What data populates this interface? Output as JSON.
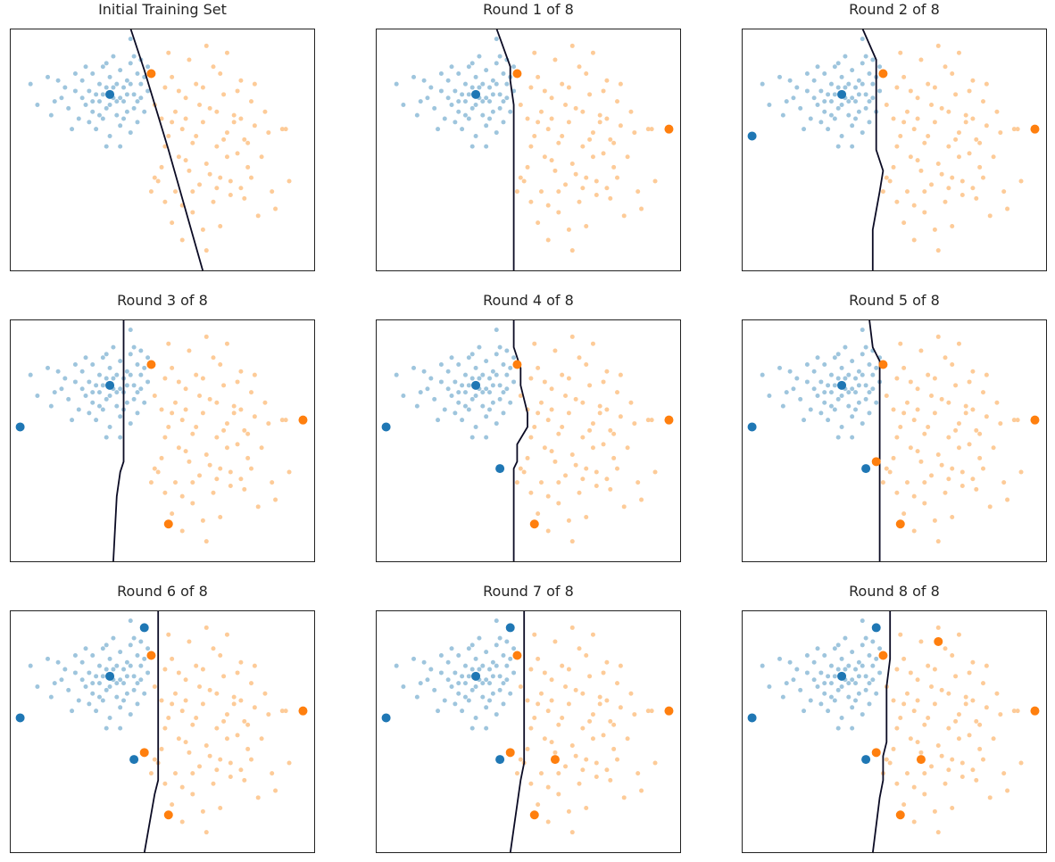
{
  "figure": {
    "colors": {
      "class_a_unlabeled": "#9ec5dd",
      "class_b_unlabeled": "#fdcb98",
      "class_a_labeled": "#1f77b4",
      "class_b_labeled": "#ff7f0e",
      "boundary": "#0b0b24",
      "frame": "#222222"
    }
  },
  "chart_data": [
    {
      "type": "scatter",
      "title": "Initial Training Set",
      "xticks": [],
      "yticks": [],
      "grid": false,
      "labeled_points": [
        {
          "class": "a",
          "x": -1.2,
          "y": 1.6
        },
        {
          "class": "b",
          "x": 0.0,
          "y": 2.2
        }
      ],
      "boundary": [
        [
          -0.6,
          3.5
        ],
        [
          -0.2,
          2.3
        ],
        [
          0.5,
          0.0
        ],
        [
          1.5,
          -3.5
        ]
      ]
    },
    {
      "type": "scatter",
      "title": "Round 1 of 8",
      "xticks": [],
      "yticks": [],
      "grid": false,
      "labeled_points": [
        {
          "class": "a",
          "x": -1.2,
          "y": 1.6
        },
        {
          "class": "b",
          "x": 0.0,
          "y": 2.2
        },
        {
          "class": "b",
          "x": 4.4,
          "y": 0.6
        }
      ],
      "boundary": [
        [
          -0.6,
          3.5
        ],
        [
          -0.2,
          2.4
        ],
        [
          -0.2,
          2.0
        ],
        [
          -0.1,
          1.3
        ],
        [
          -0.1,
          -3.5
        ]
      ]
    },
    {
      "type": "scatter",
      "title": "Round 2 of 8",
      "xticks": [],
      "yticks": [],
      "grid": false,
      "labeled_points": [
        {
          "class": "a",
          "x": -1.2,
          "y": 1.6
        },
        {
          "class": "b",
          "x": 0.0,
          "y": 2.2
        },
        {
          "class": "b",
          "x": 4.4,
          "y": 0.6
        },
        {
          "class": "a",
          "x": -3.8,
          "y": 0.4
        }
      ],
      "boundary": [
        [
          -0.6,
          3.5
        ],
        [
          -0.2,
          2.6
        ],
        [
          -0.2,
          0.0
        ],
        [
          0.0,
          -0.6
        ],
        [
          -0.1,
          -1.2
        ],
        [
          -0.3,
          -2.3
        ],
        [
          -0.3,
          -3.5
        ]
      ]
    },
    {
      "type": "scatter",
      "title": "Round 3 of 8",
      "xticks": [],
      "yticks": [],
      "grid": false,
      "labeled_points": [
        {
          "class": "a",
          "x": -1.2,
          "y": 1.6
        },
        {
          "class": "b",
          "x": 0.0,
          "y": 2.2
        },
        {
          "class": "b",
          "x": 4.4,
          "y": 0.6
        },
        {
          "class": "a",
          "x": -3.8,
          "y": 0.4
        },
        {
          "class": "b",
          "x": 0.5,
          "y": -2.4
        }
      ],
      "boundary": [
        [
          -0.8,
          3.5
        ],
        [
          -0.8,
          -0.6
        ],
        [
          -0.9,
          -0.9
        ],
        [
          -1.0,
          -1.6
        ],
        [
          -1.1,
          -3.5
        ]
      ]
    },
    {
      "type": "scatter",
      "title": "Round 4 of 8",
      "xticks": [],
      "yticks": [],
      "grid": false,
      "labeled_points": [
        {
          "class": "a",
          "x": -1.2,
          "y": 1.6
        },
        {
          "class": "b",
          "x": 0.0,
          "y": 2.2
        },
        {
          "class": "b",
          "x": 4.4,
          "y": 0.6
        },
        {
          "class": "a",
          "x": -3.8,
          "y": 0.4
        },
        {
          "class": "b",
          "x": 0.5,
          "y": -2.4
        },
        {
          "class": "a",
          "x": -0.5,
          "y": -0.8
        }
      ],
      "boundary": [
        [
          -0.1,
          3.5
        ],
        [
          -0.1,
          2.7
        ],
        [
          0.1,
          2.1
        ],
        [
          0.1,
          1.6
        ],
        [
          0.3,
          0.8
        ],
        [
          0.3,
          0.4
        ],
        [
          0.0,
          -0.1
        ],
        [
          0.0,
          -0.6
        ],
        [
          -0.1,
          -0.8
        ],
        [
          -0.1,
          -3.5
        ]
      ]
    },
    {
      "type": "scatter",
      "title": "Round 5 of 8",
      "xticks": [],
      "yticks": [],
      "grid": false,
      "labeled_points": [
        {
          "class": "a",
          "x": -1.2,
          "y": 1.6
        },
        {
          "class": "b",
          "x": 0.0,
          "y": 2.2
        },
        {
          "class": "b",
          "x": 4.4,
          "y": 0.6
        },
        {
          "class": "a",
          "x": -3.8,
          "y": 0.4
        },
        {
          "class": "b",
          "x": 0.5,
          "y": -2.4
        },
        {
          "class": "a",
          "x": -0.5,
          "y": -0.8
        },
        {
          "class": "b",
          "x": -0.2,
          "y": -0.6
        }
      ],
      "boundary": [
        [
          -0.4,
          3.5
        ],
        [
          -0.3,
          2.7
        ],
        [
          -0.1,
          2.3
        ],
        [
          -0.1,
          -3.5
        ]
      ]
    },
    {
      "type": "scatter",
      "title": "Round 6 of 8",
      "xticks": [],
      "yticks": [],
      "grid": false,
      "labeled_points": [
        {
          "class": "a",
          "x": -1.2,
          "y": 1.6
        },
        {
          "class": "b",
          "x": 0.0,
          "y": 2.2
        },
        {
          "class": "b",
          "x": 4.4,
          "y": 0.6
        },
        {
          "class": "a",
          "x": -3.8,
          "y": 0.4
        },
        {
          "class": "b",
          "x": 0.5,
          "y": -2.4
        },
        {
          "class": "a",
          "x": -0.5,
          "y": -0.8
        },
        {
          "class": "b",
          "x": -0.2,
          "y": -0.6
        },
        {
          "class": "a",
          "x": -0.2,
          "y": 3.0
        }
      ],
      "boundary": [
        [
          0.2,
          3.5
        ],
        [
          0.2,
          -1.4
        ],
        [
          0.1,
          -1.8
        ],
        [
          -0.2,
          -3.5
        ]
      ]
    },
    {
      "type": "scatter",
      "title": "Round 7 of 8",
      "xticks": [],
      "yticks": [],
      "grid": false,
      "labeled_points": [
        {
          "class": "a",
          "x": -1.2,
          "y": 1.6
        },
        {
          "class": "b",
          "x": 0.0,
          "y": 2.2
        },
        {
          "class": "b",
          "x": 4.4,
          "y": 0.6
        },
        {
          "class": "a",
          "x": -3.8,
          "y": 0.4
        },
        {
          "class": "b",
          "x": 0.5,
          "y": -2.4
        },
        {
          "class": "a",
          "x": -0.5,
          "y": -0.8
        },
        {
          "class": "b",
          "x": -0.2,
          "y": -0.6
        },
        {
          "class": "a",
          "x": -0.2,
          "y": 3.0
        },
        {
          "class": "b",
          "x": 1.1,
          "y": -0.8
        }
      ],
      "boundary": [
        [
          0.2,
          3.5
        ],
        [
          0.2,
          -0.9
        ],
        [
          0.1,
          -1.4
        ],
        [
          -0.2,
          -3.5
        ]
      ]
    },
    {
      "type": "scatter",
      "title": "Round 8 of 8",
      "xticks": [],
      "yticks": [],
      "grid": false,
      "labeled_points": [
        {
          "class": "a",
          "x": -1.2,
          "y": 1.6
        },
        {
          "class": "b",
          "x": 0.0,
          "y": 2.2
        },
        {
          "class": "b",
          "x": 4.4,
          "y": 0.6
        },
        {
          "class": "a",
          "x": -3.8,
          "y": 0.4
        },
        {
          "class": "b",
          "x": 0.5,
          "y": -2.4
        },
        {
          "class": "a",
          "x": -0.5,
          "y": -0.8
        },
        {
          "class": "b",
          "x": -0.2,
          "y": -0.6
        },
        {
          "class": "a",
          "x": -0.2,
          "y": 3.0
        },
        {
          "class": "b",
          "x": 1.1,
          "y": -0.8
        },
        {
          "class": "b",
          "x": 1.6,
          "y": 2.6
        }
      ],
      "boundary": [
        [
          0.2,
          3.5
        ],
        [
          0.2,
          2.1
        ],
        [
          0.1,
          1.3
        ],
        [
          0.1,
          -0.3
        ],
        [
          0.0,
          -0.7
        ],
        [
          0.0,
          -1.4
        ],
        [
          -0.1,
          -1.9
        ],
        [
          -0.3,
          -3.5
        ]
      ]
    }
  ],
  "unlabeled_points": {
    "a": [
      [
        -3.5,
        1.9
      ],
      [
        -3.3,
        1.3
      ],
      [
        -2.9,
        1.0
      ],
      [
        -3.0,
        2.1
      ],
      [
        -2.8,
        1.4
      ],
      [
        -2.5,
        1.8
      ],
      [
        -2.4,
        1.2
      ],
      [
        -2.2,
        1.7
      ],
      [
        -2.1,
        0.9
      ],
      [
        -2.0,
        2.0
      ],
      [
        -1.9,
        1.3
      ],
      [
        -1.8,
        1.7
      ],
      [
        -1.7,
        2.2
      ],
      [
        -1.7,
        1.1
      ],
      [
        -1.6,
        0.6
      ],
      [
        -1.5,
        1.9
      ],
      [
        -1.5,
        1.4
      ],
      [
        -1.4,
        2.4
      ],
      [
        -1.4,
        0.9
      ],
      [
        -1.3,
        1.2
      ],
      [
        -1.3,
        1.8
      ],
      [
        -1.2,
        2.1
      ],
      [
        -1.2,
        0.4
      ],
      [
        -1.1,
        1.5
      ],
      [
        -1.1,
        2.7
      ],
      [
        -1.0,
        1.0
      ],
      [
        -1.0,
        1.9
      ],
      [
        -0.9,
        2.3
      ],
      [
        -0.9,
        0.7
      ],
      [
        -0.8,
        1.4
      ],
      [
        -0.8,
        1.8
      ],
      [
        -0.7,
        2.0
      ],
      [
        -0.7,
        1.1
      ],
      [
        -0.6,
        0.5
      ],
      [
        -0.6,
        2.5
      ],
      [
        -0.5,
        1.6
      ],
      [
        -0.5,
        1.2
      ],
      [
        -0.4,
        2.2
      ],
      [
        -0.4,
        0.8
      ],
      [
        -0.3,
        1.9
      ],
      [
        -0.3,
        1.5
      ],
      [
        -0.2,
        2.1
      ],
      [
        -0.2,
        1.1
      ],
      [
        -0.1,
        2.4
      ],
      [
        -0.1,
        1.7
      ],
      [
        -1.8,
        0.8
      ],
      [
        -2.6,
        1.5
      ],
      [
        -2.3,
        0.6
      ],
      [
        -1.9,
        2.4
      ],
      [
        -1.6,
        1.6
      ],
      [
        -1.3,
        2.5
      ],
      [
        -1.0,
        1.4
      ],
      [
        -0.8,
        0.9
      ],
      [
        -0.5,
        2.7
      ],
      [
        -0.3,
        2.6
      ],
      [
        -2.7,
        2.0
      ],
      [
        -2.0,
        1.5
      ],
      [
        -1.4,
        1.6
      ],
      [
        -1.1,
        1.8
      ],
      [
        -0.7,
        1.6
      ],
      [
        -0.6,
        1.9
      ],
      [
        -1.7,
        1.4
      ],
      [
        -2.2,
        2.2
      ],
      [
        -0.9,
        1.5
      ],
      [
        -1.5,
        1.0
      ],
      [
        -1.2,
        1.3
      ],
      [
        -0.4,
        1.4
      ],
      [
        -0.6,
        3.2
      ],
      [
        -1.3,
        0.1
      ],
      [
        -0.9,
        0.1
      ]
    ],
    "b": [
      [
        0.1,
        1.3
      ],
      [
        0.3,
        0.9
      ],
      [
        0.4,
        1.8
      ],
      [
        0.5,
        0.4
      ],
      [
        0.6,
        2.1
      ],
      [
        0.7,
        1.1
      ],
      [
        0.8,
        -0.2
      ],
      [
        0.9,
        0.6
      ],
      [
        1.0,
        1.5
      ],
      [
        1.1,
        -0.6
      ],
      [
        1.2,
        0.2
      ],
      [
        1.3,
        1.9
      ],
      [
        1.4,
        -1.0
      ],
      [
        1.5,
        0.8
      ],
      [
        1.6,
        -0.4
      ],
      [
        1.7,
        1.2
      ],
      [
        1.8,
        2.4
      ],
      [
        1.9,
        0.1
      ],
      [
        2.0,
        -0.8
      ],
      [
        2.1,
        1.6
      ],
      [
        2.2,
        0.5
      ],
      [
        2.3,
        -1.3
      ],
      [
        2.4,
        1.0
      ],
      [
        2.5,
        -0.1
      ],
      [
        2.6,
        2.0
      ],
      [
        2.7,
        0.3
      ],
      [
        2.8,
        -0.5
      ],
      [
        2.9,
        1.4
      ],
      [
        3.0,
        0.7
      ],
      [
        3.2,
        -0.2
      ],
      [
        3.4,
        0.5
      ],
      [
        3.6,
        -1.7
      ],
      [
        3.8,
        0.6
      ],
      [
        4.0,
        -0.9
      ],
      [
        0.2,
        -0.9
      ],
      [
        0.4,
        -1.5
      ],
      [
        0.6,
        -2.1
      ],
      [
        0.9,
        -2.6
      ],
      [
        1.2,
        -1.8
      ],
      [
        1.5,
        -2.3
      ],
      [
        1.8,
        -1.5
      ],
      [
        2.0,
        -2.2
      ],
      [
        2.3,
        -0.9
      ],
      [
        2.6,
        -1.1
      ],
      [
        3.1,
        -1.9
      ],
      [
        0.5,
        2.8
      ],
      [
        1.1,
        2.6
      ],
      [
        1.6,
        3.0
      ],
      [
        2.2,
        2.8
      ],
      [
        0.7,
        -1.2
      ],
      [
        1.0,
        -0.3
      ],
      [
        1.3,
        0.4
      ],
      [
        1.9,
        1.1
      ],
      [
        2.4,
        0.8
      ],
      [
        2.7,
        -1.4
      ],
      [
        3.3,
        1.1
      ],
      [
        0.3,
        -0.5
      ],
      [
        1.7,
        -0.7
      ],
      [
        2.1,
        0.3
      ],
      [
        0.8,
        1.7
      ],
      [
        1.4,
        1.3
      ],
      [
        2.9,
        -0.8
      ],
      [
        1.2,
        -1.2
      ],
      [
        0.6,
        0.8
      ],
      [
        2.5,
        1.7
      ],
      [
        3.5,
        -1.2
      ],
      [
        1.9,
        -1.1
      ],
      [
        1.0,
        0.9
      ],
      [
        2.8,
        0.2
      ],
      [
        0.9,
        -1.6
      ],
      [
        2.2,
        -0.2
      ],
      [
        3.0,
        1.9
      ],
      [
        1.5,
        1.8
      ],
      [
        0.4,
        0.1
      ],
      [
        1.6,
        -2.9
      ],
      [
        0.1,
        -0.8
      ],
      [
        2.0,
        2.2
      ],
      [
        3.9,
        0.6
      ],
      [
        0.0,
        -1.2
      ],
      [
        2.6,
        0.9
      ]
    ]
  }
}
